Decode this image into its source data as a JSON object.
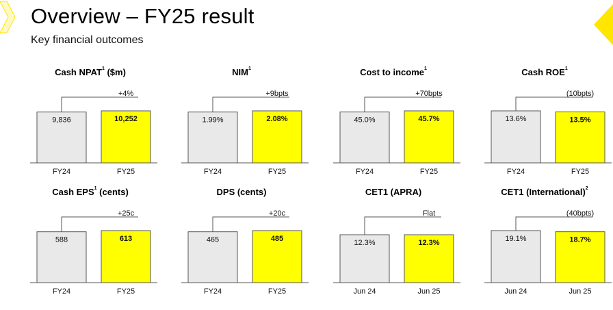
{
  "header": {
    "title": "Overview – FY25 result",
    "subtitle": "Key financial outcomes"
  },
  "colors": {
    "prior_bar": "#e9e9e9",
    "current_bar": "#ffff00",
    "bar_border": "#555555",
    "connector": "#555555",
    "accent_corner": "#ffe600"
  },
  "chart_data": [
    {
      "type": "bar",
      "title": "Cash NPAT",
      "title_sup": "1",
      "title_suffix": " ($m)",
      "categories": [
        "FY24",
        "FY25"
      ],
      "labels": [
        "9,836",
        "10,252"
      ],
      "values": [
        9836,
        10252
      ],
      "change": "+4%"
    },
    {
      "type": "bar",
      "title": "NIM",
      "title_sup": "1",
      "title_suffix": "",
      "categories": [
        "FY24",
        "FY25"
      ],
      "labels": [
        "1.99%",
        "2.08%"
      ],
      "values": [
        1.99,
        2.08
      ],
      "change": "+9bpts"
    },
    {
      "type": "bar",
      "title": "Cost to income",
      "title_sup": "1",
      "title_suffix": "",
      "categories": [
        "FY24",
        "FY25"
      ],
      "labels": [
        "45.0%",
        "45.7%"
      ],
      "values": [
        45.0,
        45.7
      ],
      "change": "+70bpts"
    },
    {
      "type": "bar",
      "title": "Cash ROE",
      "title_sup": "1",
      "title_suffix": "",
      "categories": [
        "FY24",
        "FY25"
      ],
      "labels": [
        "13.6%",
        "13.5%"
      ],
      "values": [
        13.6,
        13.5
      ],
      "change": "(10bpts)"
    },
    {
      "type": "bar",
      "title": "Cash EPS",
      "title_sup": "1",
      "title_suffix": " (cents)",
      "categories": [
        "FY24",
        "FY25"
      ],
      "labels": [
        "588",
        "613"
      ],
      "values": [
        588,
        613
      ],
      "change": "+25c"
    },
    {
      "type": "bar",
      "title": "DPS (cents)",
      "title_sup": "",
      "title_suffix": "",
      "categories": [
        "FY24",
        "FY25"
      ],
      "labels": [
        "465",
        "485"
      ],
      "values": [
        465,
        485
      ],
      "change": "+20c"
    },
    {
      "type": "bar",
      "title": "CET1 (APRA)",
      "title_sup": "",
      "title_suffix": "",
      "categories": [
        "Jun 24",
        "Jun 25"
      ],
      "labels": [
        "12.3%",
        "12.3%"
      ],
      "values": [
        12.3,
        12.3
      ],
      "change": "Flat"
    },
    {
      "type": "bar",
      "title": "CET1 (International)",
      "title_sup": "2",
      "title_suffix": "",
      "categories": [
        "Jun 24",
        "Jun 25"
      ],
      "labels": [
        "19.1%",
        "18.7%"
      ],
      "values": [
        19.1,
        18.7
      ],
      "change": "(40bpts)"
    }
  ]
}
